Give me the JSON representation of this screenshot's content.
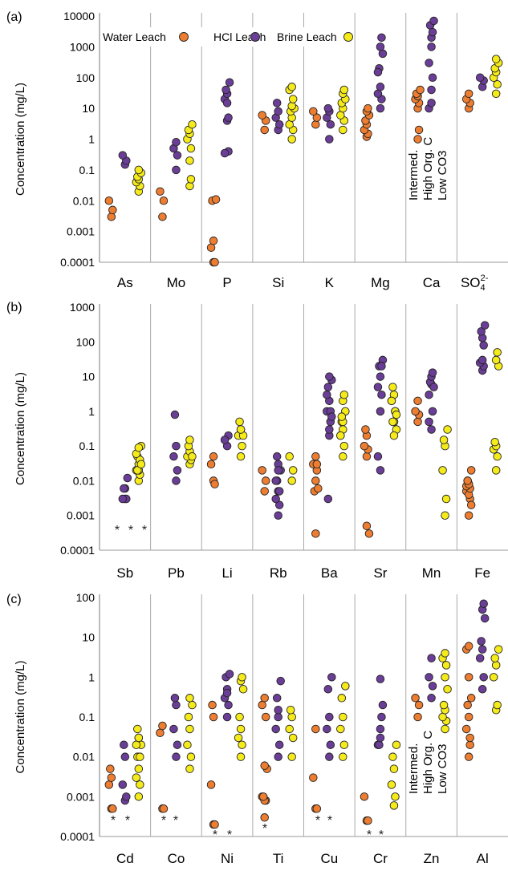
{
  "chart_data": [
    {
      "panel": "(a)",
      "type": "scatter",
      "ylabel": "Concentration (mg/L)",
      "yscale": "log",
      "ylim": [
        0.0001,
        10000
      ],
      "yticks": [
        "10000",
        "1000",
        "100",
        "10",
        "1",
        "0.1",
        "0.01",
        "0.001",
        "0.0001"
      ],
      "categories": [
        "As",
        "Mo",
        "P",
        "Si",
        "K",
        "Mg",
        "Ca",
        "SO42-"
      ],
      "legend": [
        "Water Leach",
        "HCl Leach",
        "Brine Leach"
      ],
      "annotation": [
        "Intermed.",
        "High Org. C",
        "Low CO3"
      ],
      "series": [
        {
          "name": "Water Leach",
          "color": "#ED7D31",
          "values": {
            "As": [
              0.003,
              0.005,
              0.01
            ],
            "Mo": [
              0.003,
              0.01,
              0.02
            ],
            "P": [
              0.0001,
              0.0001,
              0.0003,
              0.0005,
              0.01,
              0.011
            ],
            "Si": [
              2,
              4,
              6
            ],
            "K": [
              3,
              5,
              8
            ],
            "Mg": [
              1.2,
              1.5,
              2,
              3,
              4,
              6,
              8,
              10
            ],
            "Ca": [
              10,
              15,
              20,
              25,
              30,
              40,
              1,
              2
            ],
            "SO42-": [
              10,
              15,
              20,
              30
            ]
          }
        },
        {
          "name": "HCl Leach",
          "color": "#6A3E96",
          "values": {
            "As": [
              0.15,
              0.2,
              0.3
            ],
            "Mo": [
              0.1,
              0.3,
              0.5,
              0.8
            ],
            "P": [
              4,
              5,
              20,
              30,
              40,
              70,
              15,
              0.4,
              0.35
            ],
            "Si": [
              2,
              3,
              5,
              8,
              15
            ],
            "K": [
              1,
              3,
              5,
              8,
              10
            ],
            "Mg": [
              10,
              20,
              30,
              50,
              200,
              600,
              1000,
              2000,
              150
            ],
            "Ca": [
              40,
              100,
              300,
              1000,
              5000,
              7000,
              2000,
              3000,
              10,
              15
            ],
            "SO42-": [
              50,
              80,
              100
            ]
          }
        },
        {
          "name": "Brine Leach",
          "color": "#F5EB1A",
          "values": {
            "As": [
              0.02,
              0.03,
              0.04,
              0.05,
              0.06,
              0.08,
              0.1
            ],
            "Mo": [
              0.2,
              0.5,
              1,
              1.5,
              2,
              3,
              0.03,
              0.05
            ],
            "P": [],
            "Si": [
              1,
              2,
              3,
              5,
              8,
              10,
              12,
              20,
              40,
              50
            ],
            "K": [
              2,
              4,
              6,
              10,
              15,
              20,
              30,
              40
            ],
            "Mg": [],
            "Ca": [],
            "SO42-": [
              30,
              60,
              100,
              150,
              200,
              300,
              400
            ]
          }
        }
      ]
    },
    {
      "panel": "(b)",
      "type": "scatter",
      "ylabel": "Concentration (mg/L)",
      "yscale": "log",
      "ylim": [
        0.0001,
        1000
      ],
      "yticks": [
        "1000",
        "100",
        "10",
        "1",
        "0.1",
        "0.01",
        "0.001",
        "0.0001"
      ],
      "categories": [
        "Sb",
        "Pb",
        "Li",
        "Rb",
        "Ba",
        "Sr",
        "Mn",
        "Fe"
      ],
      "star_marks": [
        "*",
        "*",
        "*"
      ],
      "series": [
        {
          "name": "Water Leach",
          "color": "#ED7D31",
          "values": {
            "Sb": [],
            "Pb": [],
            "Li": [
              0.01,
              0.008,
              0.03,
              0.05
            ],
            "Rb": [
              0.005,
              0.01,
              0.02
            ],
            "Ba": [
              0.01,
              0.02,
              0.03,
              0.05,
              0.005,
              0.006,
              0.0003,
              0.03
            ],
            "Sr": [
              0.05,
              0.08,
              0.1,
              0.2,
              0.3,
              0.0003,
              0.0005
            ],
            "Mn": [
              0.5,
              0.8,
              1,
              2
            ],
            "Fe": [
              0.001,
              0.003,
              0.005,
              0.008,
              0.01,
              0.02,
              0.004,
              0.006,
              0.007,
              0.008,
              0.01,
              0.002
            ]
          }
        },
        {
          "name": "HCl Leach",
          "color": "#6A3E96",
          "values": {
            "Sb": [
              0.003,
              0.003,
              0.003,
              0.006,
              0.006,
              0.012
            ],
            "Pb": [
              0.01,
              0.02,
              0.05,
              0.1,
              0.8
            ],
            "Li": [
              0.1,
              0.2,
              0.15
            ],
            "Rb": [
              0.001,
              0.002,
              0.003,
              0.005,
              0.01,
              0.02,
              0.03,
              0.005,
              0.01,
              0.02,
              0.05
            ],
            "Ba": [
              0.2,
              0.5,
              1,
              2,
              5,
              8,
              0.3,
              1,
              3,
              10,
              0.003,
              0.7
            ],
            "Sr": [
              1,
              3,
              5,
              10,
              20,
              30,
              0.02,
              20,
              0.05
            ],
            "Mn": [
              0.3,
              1,
              3,
              6,
              7,
              5,
              10,
              13,
              0.5
            ],
            "Fe": [
              15,
              20,
              25,
              130,
              200,
              300,
              30,
              80
            ]
          }
        },
        {
          "name": "Brine Leach",
          "color": "#F5EB1A",
          "values": {
            "Sb": [
              0.01,
              0.015,
              0.02,
              0.03,
              0.05,
              0.1,
              0.02,
              0.04,
              0.06,
              0.09,
              0.02,
              0.03
            ],
            "Pb": [
              0.03,
              0.04,
              0.05,
              0.07,
              0.1,
              0.05,
              0.15
            ],
            "Li": [
              0.05,
              0.1,
              0.2,
              0.3,
              0.5,
              0.2,
              0.3
            ],
            "Rb": [
              0.01,
              0.02,
              0.05
            ],
            "Ba": [
              0.05,
              0.1,
              0.2,
              0.3,
              0.5,
              1,
              2,
              3,
              0.2,
              0.5,
              0.7
            ],
            "Sr": [
              0.5,
              1,
              2,
              3,
              5,
              0.3,
              0.5,
              1,
              2,
              0.2,
              0.5,
              0.8
            ],
            "Mn": [
              0.001,
              0.003,
              0.02,
              0.1,
              0.15,
              0.3
            ],
            "Fe": [
              0.02,
              0.05,
              0.08,
              0.1,
              0.13,
              20,
              30,
              50
            ]
          }
        }
      ]
    },
    {
      "panel": "(c)",
      "type": "scatter",
      "ylabel": "Concentration (mg/L)",
      "yscale": "log",
      "ylim": [
        0.0001,
        100
      ],
      "yticks": [
        "100",
        "10",
        "1",
        "0.1",
        "0.01",
        "0.001",
        "0.0001"
      ],
      "categories": [
        "Cd",
        "Co",
        "Ni",
        "Ti",
        "Cu",
        "Cr",
        "Zn",
        "Al"
      ],
      "star_marks": [
        "*",
        "*",
        "*",
        "*",
        "*",
        "*",
        "*",
        "*",
        "*",
        "*",
        "*"
      ],
      "annotation": [
        "Intermed.",
        "High Org. C",
        "Low CO3"
      ],
      "series": [
        {
          "name": "Water Leach",
          "color": "#ED7D31",
          "values": {
            "Cd": [
              0.0005,
              0.0005,
              0.002,
              0.003,
              0.005
            ],
            "Co": [
              0.0005,
              0.0005,
              0.04,
              0.06
            ],
            "Ni": [
              0.0002,
              0.0002,
              0.002,
              0.1,
              0.2
            ],
            "Ti": [
              0.0003,
              0.0008,
              0.001,
              0.0008,
              0.001,
              0.005,
              0.006,
              0.1,
              0.2,
              0.3
            ],
            "Cu": [
              0.0005,
              0.0005,
              0.003,
              0.05
            ],
            "Cr": [
              0.00025,
              0.00025,
              0.001
            ],
            "Zn": [
              0.1,
              0.2,
              0.3
            ],
            "Al": [
              0.01,
              0.02,
              0.05,
              0.1,
              0.2,
              0.3,
              1,
              0.03,
              5,
              6
            ]
          }
        },
        {
          "name": "HCl Leach",
          "color": "#6A3E96",
          "values": {
            "Cd": [
              0.0008,
              0.001,
              0.002,
              0.01,
              0.02
            ],
            "Co": [
              0.01,
              0.02,
              0.05,
              0.2,
              0.3
            ],
            "Ni": [
              0.1,
              0.2,
              0.3,
              0.5,
              1,
              1.2,
              0.4
            ],
            "Ti": [
              0.01,
              0.02,
              0.05,
              0.1,
              0.3,
              0.8,
              0.15
            ],
            "Cu": [
              0.01,
              0.02,
              0.05,
              0.1,
              0.5,
              1
            ],
            "Cr": [
              0.05,
              0.1,
              0.02,
              0.9,
              0.02,
              0.2,
              0.03
            ],
            "Zn": [
              0.3,
              0.6,
              1,
              3
            ],
            "Al": [
              0.5,
              1,
              3,
              5,
              8,
              30,
              50,
              70
            ]
          }
        },
        {
          "name": "Brine Leach",
          "color": "#F5EB1A",
          "values": {
            "Cd": [
              0.001,
              0.002,
              0.003,
              0.005,
              0.01,
              0.02,
              0.03,
              0.01,
              0.02,
              0.03,
              0.05
            ],
            "Co": [
              0.005,
              0.01,
              0.02,
              0.05,
              0.1,
              0.2,
              0.3
            ],
            "Ni": [
              0.01,
              0.02,
              0.03,
              0.05,
              0.1,
              0.5,
              0.8,
              1
            ],
            "Ti": [
              0.01,
              0.03,
              0.05,
              0.1,
              0.15
            ],
            "Cu": [
              0.01,
              0.02,
              0.05,
              0.1,
              0.3,
              0.6
            ],
            "Cr": [
              0.0006,
              0.001,
              0.002,
              0.005,
              0.01,
              0.02
            ],
            "Zn": [
              0.05,
              0.08,
              0.1,
              0.15,
              0.2,
              0.5,
              1,
              2,
              3,
              4
            ],
            "Al": [
              0.15,
              0.2,
              1,
              2,
              3,
              5
            ]
          }
        }
      ]
    }
  ]
}
